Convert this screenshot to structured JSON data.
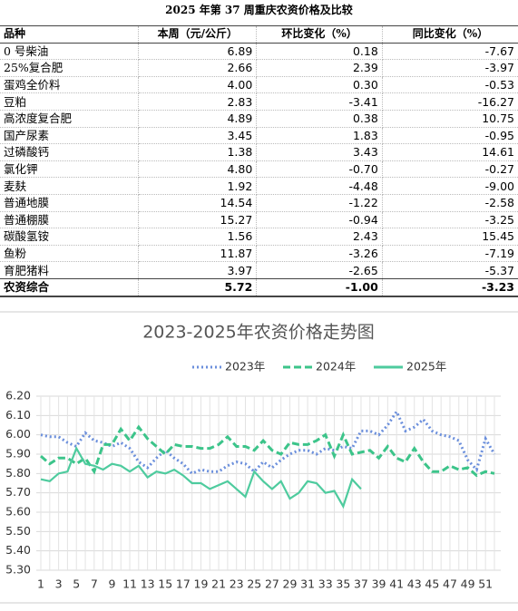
{
  "table": {
    "title": "2025 年第 37 周重庆农资价格及比较",
    "header": [
      "品种",
      "本周（元/公斤）",
      "环比变化（%）",
      "同比变化（%）"
    ],
    "rows": [
      [
        "0 号柴油",
        "6.89",
        "0.18",
        "-7.67"
      ],
      [
        "25%复合肥",
        "2.66",
        "2.39",
        "-3.97"
      ],
      [
        "蛋鸡全价料",
        "4.00",
        "0.30",
        "-0.53"
      ],
      [
        "豆粕",
        "2.83",
        "-3.41",
        "-16.27"
      ],
      [
        "高浓度复合肥",
        "4.89",
        "0.38",
        "10.75"
      ],
      [
        "国产尿素",
        "3.45",
        "1.83",
        "-0.95"
      ],
      [
        "过磷酸钙",
        "1.38",
        "3.43",
        "14.61"
      ],
      [
        "氯化钾",
        "4.80",
        "-0.70",
        "-0.27"
      ],
      [
        "麦麸",
        "1.92",
        "-4.48",
        "-9.00"
      ],
      [
        "普通地膜",
        "14.54",
        "-1.22",
        "-2.58"
      ],
      [
        "普通棚膜",
        "15.27",
        "-0.94",
        "-3.25"
      ],
      [
        "碳酸氢铵",
        "1.56",
        "2.43",
        "15.45"
      ],
      [
        "鱼粉",
        "11.87",
        "-3.26",
        "-7.19"
      ],
      [
        "育肥猪料",
        "3.97",
        "-2.65",
        "-5.37"
      ]
    ],
    "total": [
      "农资综合",
      "5.72",
      "-1.00",
      "-3.23"
    ]
  },
  "chart_data": {
    "type": "line",
    "title": "2023-2025年农资价格走势图",
    "categories": [
      1,
      null,
      3,
      null,
      5,
      null,
      7,
      null,
      9,
      null,
      11,
      null,
      13,
      null,
      15,
      null,
      17,
      null,
      19,
      null,
      21,
      null,
      23,
      null,
      25,
      null,
      27,
      null,
      29,
      null,
      31,
      null,
      33,
      null,
      35,
      null,
      37,
      null,
      39,
      null,
      41,
      null,
      43,
      null,
      45,
      null,
      47,
      null,
      49,
      null,
      51,
      null
    ],
    "ylim": [
      5.3,
      6.2
    ],
    "yticks": [
      {
        "value": 5.3,
        "label": "5.30"
      },
      {
        "value": 5.4,
        "label": "5.40"
      },
      {
        "value": 5.5,
        "label": "5.50"
      },
      {
        "value": 5.6,
        "label": "5.60"
      },
      {
        "value": 5.7,
        "label": "5.70"
      },
      {
        "value": 5.8,
        "label": "5.80"
      },
      {
        "value": 5.9,
        "label": "5.90"
      },
      {
        "value": 6.0,
        "label": "6.00"
      },
      {
        "value": 6.1,
        "label": "6.10"
      },
      {
        "value": 6.2,
        "label": "6.20"
      }
    ],
    "grid": true,
    "legend": "top",
    "series": [
      {
        "name": "2023年",
        "color": "#6b8fdc",
        "dash": "dotted",
        "values": [
          6.0,
          5.99,
          5.99,
          5.96,
          5.94,
          6.01,
          5.97,
          5.96,
          5.94,
          5.96,
          5.93,
          5.86,
          5.83,
          5.88,
          5.92,
          5.88,
          5.85,
          5.8,
          5.82,
          5.81,
          5.81,
          5.84,
          5.86,
          5.85,
          5.81,
          5.86,
          5.83,
          5.87,
          5.9,
          5.92,
          5.92,
          5.9,
          5.93,
          5.92,
          5.94,
          5.93,
          6.02,
          6.02,
          6.0,
          6.05,
          6.12,
          6.02,
          6.04,
          6.08,
          6.02,
          6.0,
          5.99,
          5.97,
          5.87,
          5.82,
          5.98,
          5.9
        ]
      },
      {
        "name": "2024年",
        "color": "#3cc48a",
        "dash": "dashed",
        "values": [
          5.89,
          5.85,
          5.88,
          5.88,
          5.85,
          5.88,
          5.81,
          5.95,
          5.95,
          6.03,
          5.97,
          6.04,
          5.98,
          5.94,
          5.9,
          5.95,
          5.94,
          5.94,
          5.93,
          5.93,
          5.95,
          5.99,
          5.94,
          5.94,
          5.92,
          5.97,
          5.92,
          5.9,
          5.96,
          5.95,
          5.95,
          5.97,
          6.0,
          5.89,
          6.0,
          5.9,
          5.91,
          5.92,
          5.88,
          5.94,
          5.88,
          5.86,
          5.93,
          5.86,
          5.81,
          5.81,
          5.84,
          5.82,
          5.83,
          5.79,
          5.81,
          5.8
        ]
      },
      {
        "name": "2025年",
        "color": "#4ecb9e",
        "dash": "solid",
        "values": [
          5.77,
          5.76,
          5.8,
          5.81,
          5.93,
          5.85,
          5.84,
          5.82,
          5.85,
          5.84,
          5.81,
          5.84,
          5.78,
          5.81,
          5.8,
          5.82,
          5.79,
          5.75,
          5.75,
          5.72,
          5.74,
          5.76,
          5.72,
          5.68,
          5.81,
          5.76,
          5.72,
          5.76,
          5.67,
          5.7,
          5.76,
          5.75,
          5.7,
          5.71,
          5.63,
          5.77,
          5.72,
          null,
          null,
          null,
          null,
          null,
          null,
          null,
          null,
          null,
          null,
          null,
          null,
          null,
          null,
          null
        ]
      }
    ]
  }
}
